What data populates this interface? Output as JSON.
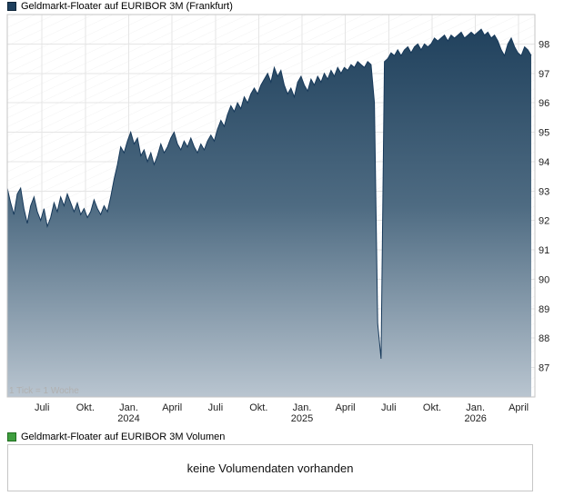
{
  "legend": {
    "price_label": "Geldmarkt-Floater auf EURIBOR 3M (Frankfurt)",
    "volume_label": "Geldmarkt-Floater auf EURIBOR 3M Volumen"
  },
  "footnote": "1 Tick = 1 Woche",
  "volume_panel": {
    "message": "keine Volumendaten vorhanden"
  },
  "colors": {
    "price_swatch": "#1e3f5e",
    "price_swatch_border": "#0d2438",
    "volume_swatch": "#3f9e3f",
    "volume_swatch_border": "#1f6e1f",
    "line": "#17395a",
    "area_top": "#1d3e5a",
    "area_mid": "#4e6b82",
    "area_bottom": "#b9c5d0",
    "grid": "#e5e5e5",
    "plot_border": "#c6c6c6",
    "axis_text": "#222222",
    "footnote_text": "#b0b0b0",
    "watermark": "rgba(0,0,0,0.05)"
  },
  "chart_data": {
    "type": "area",
    "title": "Geldmarkt-Floater auf EURIBOR 3M (Frankfurt)",
    "x_unit": "week",
    "tick_note": "1 Tick = 1 Woche",
    "ylim": [
      86,
      99
    ],
    "grid": true,
    "legend_position": "top-left",
    "y_ticks": [
      87,
      88,
      89,
      90,
      91,
      92,
      93,
      94,
      95,
      96,
      97,
      98
    ],
    "x_ticks": [
      {
        "label": "Juli",
        "year": "",
        "week": 10.4
      },
      {
        "label": "Okt.",
        "year": "",
        "week": 23.4
      },
      {
        "label": "Jan.",
        "year": "2024",
        "week": 36.4
      },
      {
        "label": "April",
        "year": "",
        "week": 49.4
      },
      {
        "label": "Juli",
        "year": "",
        "week": 62.4
      },
      {
        "label": "Okt.",
        "year": "",
        "week": 75.3
      },
      {
        "label": "Jan.",
        "year": "2025",
        "week": 88.3
      },
      {
        "label": "April",
        "year": "",
        "week": 101.3
      },
      {
        "label": "Juli",
        "year": "",
        "week": 114.3
      },
      {
        "label": "Okt.",
        "year": "",
        "week": 127.3
      },
      {
        "label": "Jan.",
        "year": "2026",
        "week": 140.3
      },
      {
        "label": "April",
        "year": "",
        "week": 153.2
      }
    ],
    "values": [
      93.1,
      92.6,
      92.2,
      92.9,
      93.1,
      92.4,
      91.9,
      92.5,
      92.8,
      92.3,
      92.0,
      92.4,
      91.8,
      92.1,
      92.6,
      92.3,
      92.8,
      92.5,
      92.9,
      92.6,
      92.3,
      92.6,
      92.2,
      92.4,
      92.1,
      92.3,
      92.7,
      92.4,
      92.2,
      92.5,
      92.3,
      92.8,
      93.4,
      93.9,
      94.5,
      94.3,
      94.7,
      95.0,
      94.6,
      94.8,
      94.2,
      94.4,
      94.0,
      94.3,
      93.9,
      94.2,
      94.6,
      94.3,
      94.5,
      94.8,
      95.0,
      94.6,
      94.4,
      94.7,
      94.5,
      94.8,
      94.5,
      94.3,
      94.6,
      94.4,
      94.7,
      94.9,
      94.7,
      95.1,
      95.4,
      95.2,
      95.6,
      95.9,
      95.7,
      96.0,
      95.8,
      96.2,
      96.0,
      96.3,
      96.5,
      96.3,
      96.6,
      96.8,
      97.0,
      96.7,
      97.2,
      96.9,
      97.1,
      96.6,
      96.3,
      96.5,
      96.2,
      96.7,
      96.9,
      96.6,
      96.4,
      96.8,
      96.6,
      96.9,
      96.7,
      97.0,
      96.8,
      97.1,
      96.9,
      97.2,
      97.0,
      97.2,
      97.1,
      97.3,
      97.2,
      97.4,
      97.3,
      97.2,
      97.4,
      97.3,
      96.0,
      88.5,
      87.3,
      97.4,
      97.5,
      97.7,
      97.6,
      97.8,
      97.6,
      97.8,
      97.9,
      97.7,
      97.9,
      98.0,
      97.8,
      98.0,
      97.9,
      98.0,
      98.2,
      98.1,
      98.2,
      98.3,
      98.1,
      98.3,
      98.2,
      98.3,
      98.4,
      98.2,
      98.3,
      98.4,
      98.3,
      98.4,
      98.5,
      98.3,
      98.4,
      98.2,
      98.3,
      98.1,
      97.8,
      97.6,
      98.0,
      98.2,
      97.9,
      97.7,
      97.6,
      97.9,
      97.8,
      97.6
    ]
  }
}
